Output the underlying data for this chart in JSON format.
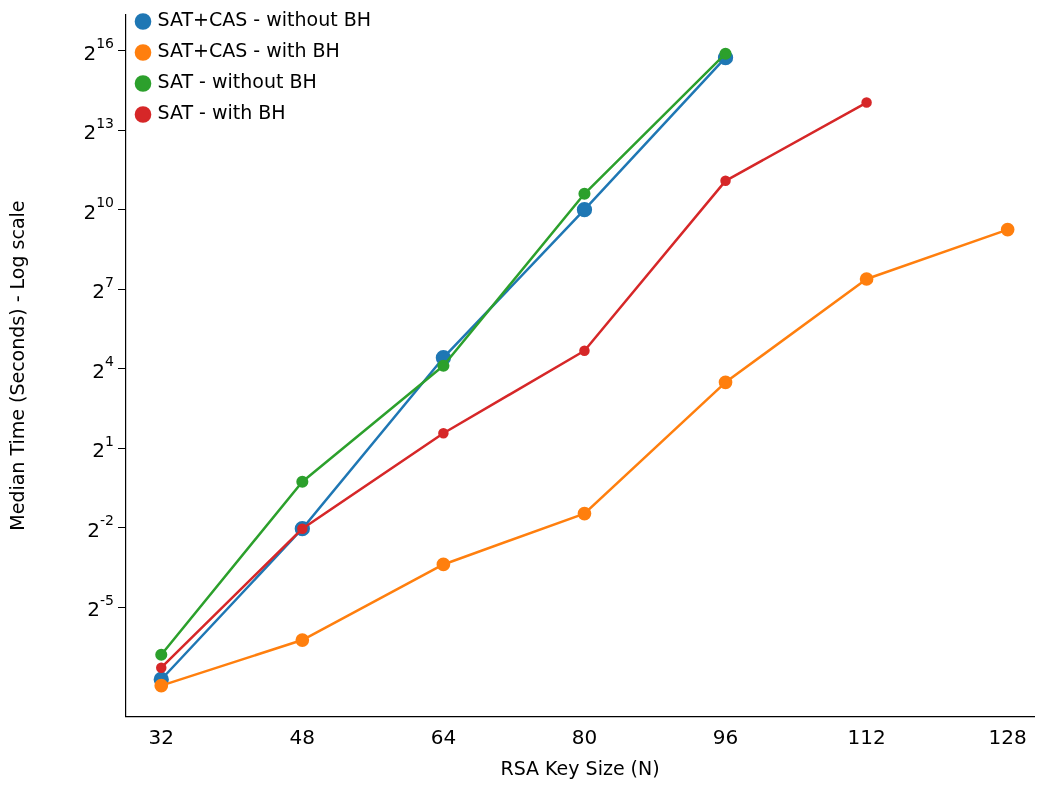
{
  "chart_data": {
    "type": "line",
    "xlabel": "RSA Key Size (N)",
    "ylabel": "Median Time (Seconds) - Log scale",
    "log": "y",
    "grid": false,
    "legend": "top left",
    "marker": "circle",
    "line_style": "solid",
    "x": [
      32,
      48,
      64,
      80,
      96,
      112,
      128
    ],
    "xlim": [
      28,
      131
    ],
    "xticks": [
      32,
      48,
      64,
      80,
      96,
      112,
      128
    ],
    "ylim": [
      0.0018,
      167000
    ],
    "yticks": [
      {
        "value": 0.03125,
        "label": "2$^{-5}$"
      },
      {
        "value": 0.25,
        "label": "2$^{-2}$"
      },
      {
        "value": 2,
        "label": "2$^{1}$"
      },
      {
        "value": 16,
        "label": "2$^{4}$"
      },
      {
        "value": 128,
        "label": "2$^{7}$"
      },
      {
        "value": 1024,
        "label": "2$^{10}$"
      },
      {
        "value": 8192,
        "label": "2$^{13}$"
      },
      {
        "value": 65536,
        "label": "2$^{16}$"
      }
    ],
    "series": [
      {
        "name": "SAT+CAS - without BH",
        "color": "#1f77b4",
        "values": [
          0.0047,
          0.243,
          21.3,
          1024,
          54700,
          null,
          null
        ]
      },
      {
        "name": "SAT+CAS - with BH",
        "color": "#ff7f0e",
        "values": [
          0.004,
          0.0132,
          0.0954,
          0.361,
          11.2,
          167,
          609
        ]
      },
      {
        "name": "SAT - without BH",
        "color": "#2ca02c",
        "values": [
          0.009,
          0.83,
          17.3,
          1552,
          60700,
          null,
          null
        ]
      },
      {
        "name": "SAT - with BH",
        "color": "#d62728",
        "values": [
          0.0064,
          0.243,
          2.95,
          25.6,
          2180,
          16900,
          null
        ]
      }
    ]
  }
}
